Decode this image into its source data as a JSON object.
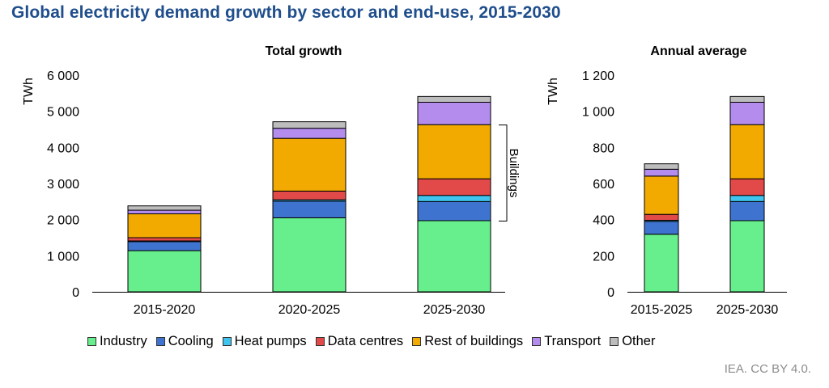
{
  "title": "Global electricity demand growth by sector and end-use, 2015-2030",
  "credit": "IEA. CC BY 4.0.",
  "colors": {
    "Industry": "#66ef8c",
    "Cooling": "#3e74cf",
    "Heat pumps": "#3ec4ee",
    "Data centres": "#e24a4a",
    "Rest of buildings": "#f2aa00",
    "Transport": "#b48cee",
    "Other": "#bdbdbd"
  },
  "legend": [
    "Industry",
    "Cooling",
    "Heat pumps",
    "Data centres",
    "Rest of buildings",
    "Transport",
    "Other"
  ],
  "chart_data": [
    {
      "type": "bar",
      "stacked": true,
      "title": "Total  growth",
      "ylabel": "TWh",
      "ylim": [
        0,
        6000
      ],
      "yticks": [
        0,
        1000,
        2000,
        3000,
        4000,
        5000,
        6000
      ],
      "ytick_labels": [
        "0",
        "1 000",
        "2 000",
        "3 000",
        "4 000",
        "5 000",
        "6 000"
      ],
      "categories": [
        "2015-2020",
        "2020-2025",
        "2025-2030"
      ],
      "series": [
        {
          "name": "Industry",
          "values": [
            1140,
            2050,
            1970
          ]
        },
        {
          "name": "Cooling",
          "values": [
            250,
            460,
            530
          ]
        },
        {
          "name": "Heat pumps",
          "values": [
            20,
            40,
            170
          ]
        },
        {
          "name": "Data centres",
          "values": [
            90,
            240,
            460
          ]
        },
        {
          "name": "Rest of buildings",
          "values": [
            660,
            1460,
            1500
          ]
        },
        {
          "name": "Transport",
          "values": [
            100,
            280,
            620
          ]
        },
        {
          "name": "Other",
          "values": [
            120,
            180,
            160
          ]
        }
      ],
      "annotation": {
        "text": "Buildings",
        "category": "2025-2030",
        "from": 1960,
        "to": 4620
      }
    },
    {
      "type": "bar",
      "stacked": true,
      "title": "Annual average",
      "ylabel": "TWh",
      "ylim": [
        0,
        1200
      ],
      "yticks": [
        0,
        200,
        400,
        600,
        800,
        1000,
        1200
      ],
      "ytick_labels": [
        "0",
        "200",
        "400",
        "600",
        "800",
        "1 000",
        "1 200"
      ],
      "categories": [
        "2015-2025",
        "2025-2030"
      ],
      "series": [
        {
          "name": "Industry",
          "values": [
            319,
            394
          ]
        },
        {
          "name": "Cooling",
          "values": [
            71,
            106
          ]
        },
        {
          "name": "Heat pumps",
          "values": [
            6,
            34
          ]
        },
        {
          "name": "Data centres",
          "values": [
            33,
            92
          ]
        },
        {
          "name": "Rest of buildings",
          "values": [
            212,
            300
          ]
        },
        {
          "name": "Transport",
          "values": [
            38,
            124
          ]
        },
        {
          "name": "Other",
          "values": [
            30,
            32
          ]
        }
      ]
    }
  ]
}
